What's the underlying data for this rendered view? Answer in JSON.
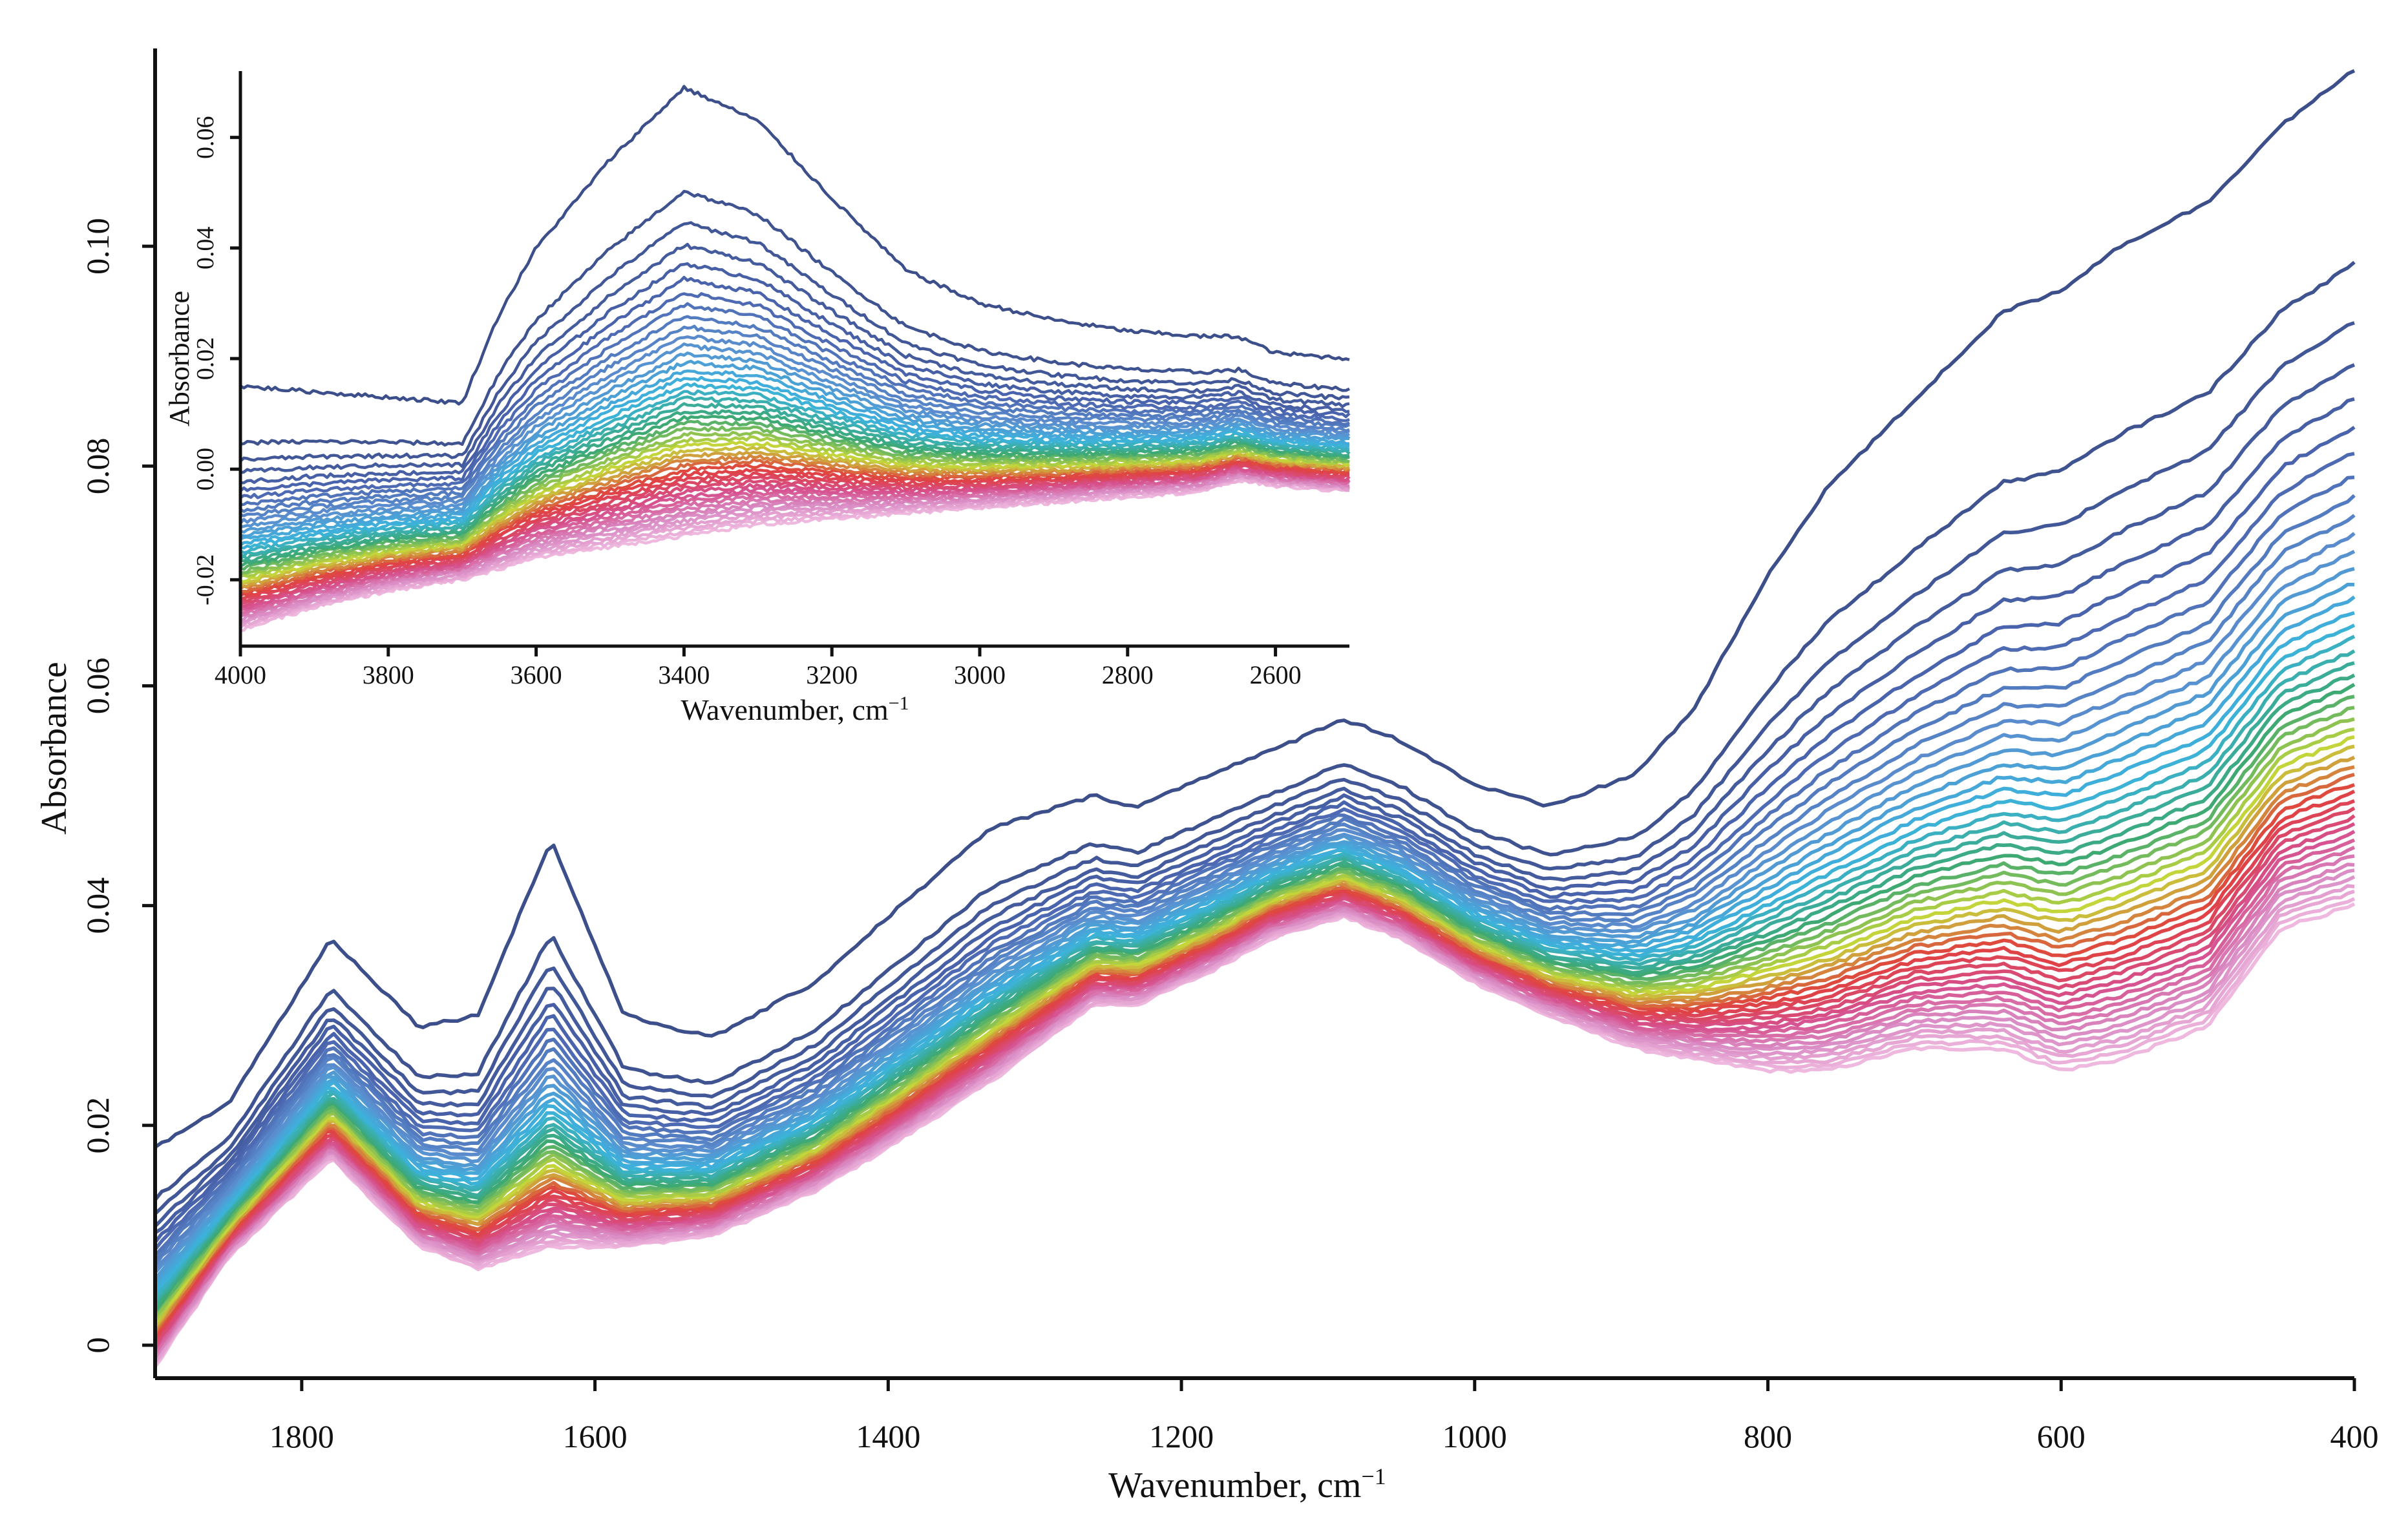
{
  "chart_data": [
    {
      "id": "main",
      "type": "line",
      "title": "",
      "xlabel": "Wavenumber, cm",
      "xlabel_superscript": "−1",
      "ylabel": "Absorbance",
      "xlim": [
        1900,
        400
      ],
      "ylim": [
        -0.003,
        0.118
      ],
      "x_ticks": [
        1800,
        1600,
        1400,
        1200,
        1000,
        800,
        600,
        400
      ],
      "x_tick_labels": [
        "1800",
        "1600",
        "1400",
        "1200",
        "1000",
        "800",
        "600",
        "400"
      ],
      "y_ticks": [
        0,
        0.02,
        0.04,
        0.06,
        0.08,
        0.1
      ],
      "y_tick_labels": [
        "0",
        "0.02",
        "0.04",
        "0.06",
        "0.08",
        "0.10"
      ],
      "series_count": 48,
      "palette": [
        "#3c4f8a",
        "#4a64ad",
        "#5b8fd0",
        "#3bb3dd",
        "#3ba873",
        "#c6d63a",
        "#e0413e",
        "#d64f8c",
        "#d98cc4",
        "#efb8de"
      ],
      "envelope_top": {
        "x": [
          1900,
          1850,
          1780,
          1720,
          1680,
          1630,
          1580,
          1520,
          1450,
          1400,
          1330,
          1260,
          1230,
          1180,
          1140,
          1090,
          1050,
          1000,
          950,
          890,
          850,
          800,
          760,
          700,
          640,
          600,
          560,
          500,
          450,
          400
        ],
        "y": [
          0.018,
          0.022,
          0.037,
          0.029,
          0.03,
          0.046,
          0.03,
          0.028,
          0.033,
          0.039,
          0.047,
          0.05,
          0.049,
          0.052,
          0.054,
          0.057,
          0.055,
          0.051,
          0.049,
          0.052,
          0.058,
          0.07,
          0.078,
          0.086,
          0.094,
          0.096,
          0.1,
          0.104,
          0.111,
          0.116
        ]
      },
      "envelope_bottom": {
        "x": [
          1900,
          1850,
          1780,
          1720,
          1680,
          1630,
          1580,
          1520,
          1450,
          1400,
          1330,
          1260,
          1230,
          1180,
          1140,
          1090,
          1050,
          1000,
          950,
          890,
          850,
          800,
          760,
          700,
          640,
          600,
          560,
          500,
          450,
          400
        ],
        "y": [
          -0.002,
          0.008,
          0.017,
          0.009,
          0.007,
          0.009,
          0.009,
          0.01,
          0.014,
          0.018,
          0.024,
          0.031,
          0.031,
          0.034,
          0.037,
          0.039,
          0.037,
          0.033,
          0.03,
          0.027,
          0.026,
          0.025,
          0.025,
          0.027,
          0.027,
          0.025,
          0.026,
          0.029,
          0.038,
          0.04
        ]
      }
    },
    {
      "id": "inset",
      "type": "line",
      "title": "",
      "xlabel": "Wavenumber, cm",
      "xlabel_superscript": "−1",
      "ylabel": "Absorbance",
      "xlim": [
        4000,
        2500
      ],
      "ylim": [
        -0.032,
        0.072
      ],
      "x_ticks": [
        4000,
        3800,
        3600,
        3400,
        3200,
        3000,
        2800,
        2600
      ],
      "x_tick_labels": [
        "4000",
        "3800",
        "3600",
        "3400",
        "3200",
        "3000",
        "2800",
        "2600"
      ],
      "y_ticks": [
        -0.02,
        0,
        0.02,
        0.04,
        0.06
      ],
      "y_tick_labels": [
        "-0.02",
        "0.00",
        "0.02",
        "0.04",
        "0.06"
      ],
      "series_count": 48,
      "envelope_top": {
        "x": [
          4000,
          3900,
          3800,
          3700,
          3650,
          3600,
          3500,
          3400,
          3300,
          3200,
          3100,
          3000,
          2900,
          2800,
          2700,
          2650,
          2600,
          2500
        ],
        "y": [
          0.015,
          0.014,
          0.013,
          0.012,
          0.028,
          0.04,
          0.056,
          0.069,
          0.063,
          0.049,
          0.036,
          0.03,
          0.027,
          0.025,
          0.024,
          0.024,
          0.021,
          0.02
        ]
      },
      "envelope_bottom": {
        "x": [
          4000,
          3900,
          3800,
          3700,
          3650,
          3600,
          3500,
          3400,
          3300,
          3200,
          3100,
          3000,
          2900,
          2800,
          2700,
          2650,
          2600,
          2500
        ],
        "y": [
          -0.029,
          -0.025,
          -0.022,
          -0.02,
          -0.018,
          -0.016,
          -0.014,
          -0.012,
          -0.01,
          -0.009,
          -0.008,
          -0.007,
          -0.006,
          -0.005,
          -0.004,
          -0.002,
          -0.003,
          -0.004
        ]
      }
    }
  ]
}
